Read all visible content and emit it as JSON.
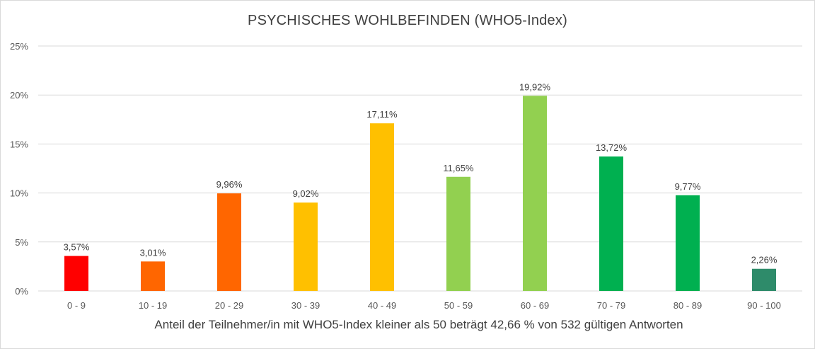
{
  "chart_data": {
    "type": "bar",
    "title": "PSYCHISCHES  WOHLBEFINDEN (WHO5-Index)",
    "xlabel": "Anteil der Teilnehmer/in mit WHO5-Index kleiner als 50 beträgt 42,66 % von 532 gültigen Antworten",
    "ylabel": "",
    "categories": [
      "0 - 9",
      "10 - 19",
      "20 - 29",
      "30 - 39",
      "40 - 49",
      "50 - 59",
      "60 - 69",
      "70 - 79",
      "80 - 89",
      "90 - 100"
    ],
    "values": [
      3.57,
      3.01,
      9.96,
      9.02,
      17.11,
      11.65,
      19.92,
      13.72,
      9.77,
      2.26
    ],
    "data_labels": [
      "3,57%",
      "3,01%",
      "9,96%",
      "9,02%",
      "17,11%",
      "11,65%",
      "19,92%",
      "13,72%",
      "9,77%",
      "2,26%"
    ],
    "bar_colors": [
      "#ff0000",
      "#ff6600",
      "#ff6600",
      "#ffc000",
      "#ffc000",
      "#92d050",
      "#92d050",
      "#00b050",
      "#00b050",
      "#2e8b6a"
    ],
    "ylim": [
      0,
      25
    ],
    "yticks": [
      0,
      5,
      10,
      15,
      20,
      25
    ],
    "ytick_labels": [
      "0%",
      "5%",
      "10%",
      "15%",
      "20%",
      "25%"
    ],
    "grid": true,
    "legend": "none"
  },
  "colors": {
    "gridline": "#d9d9d9",
    "text": "#404040"
  }
}
